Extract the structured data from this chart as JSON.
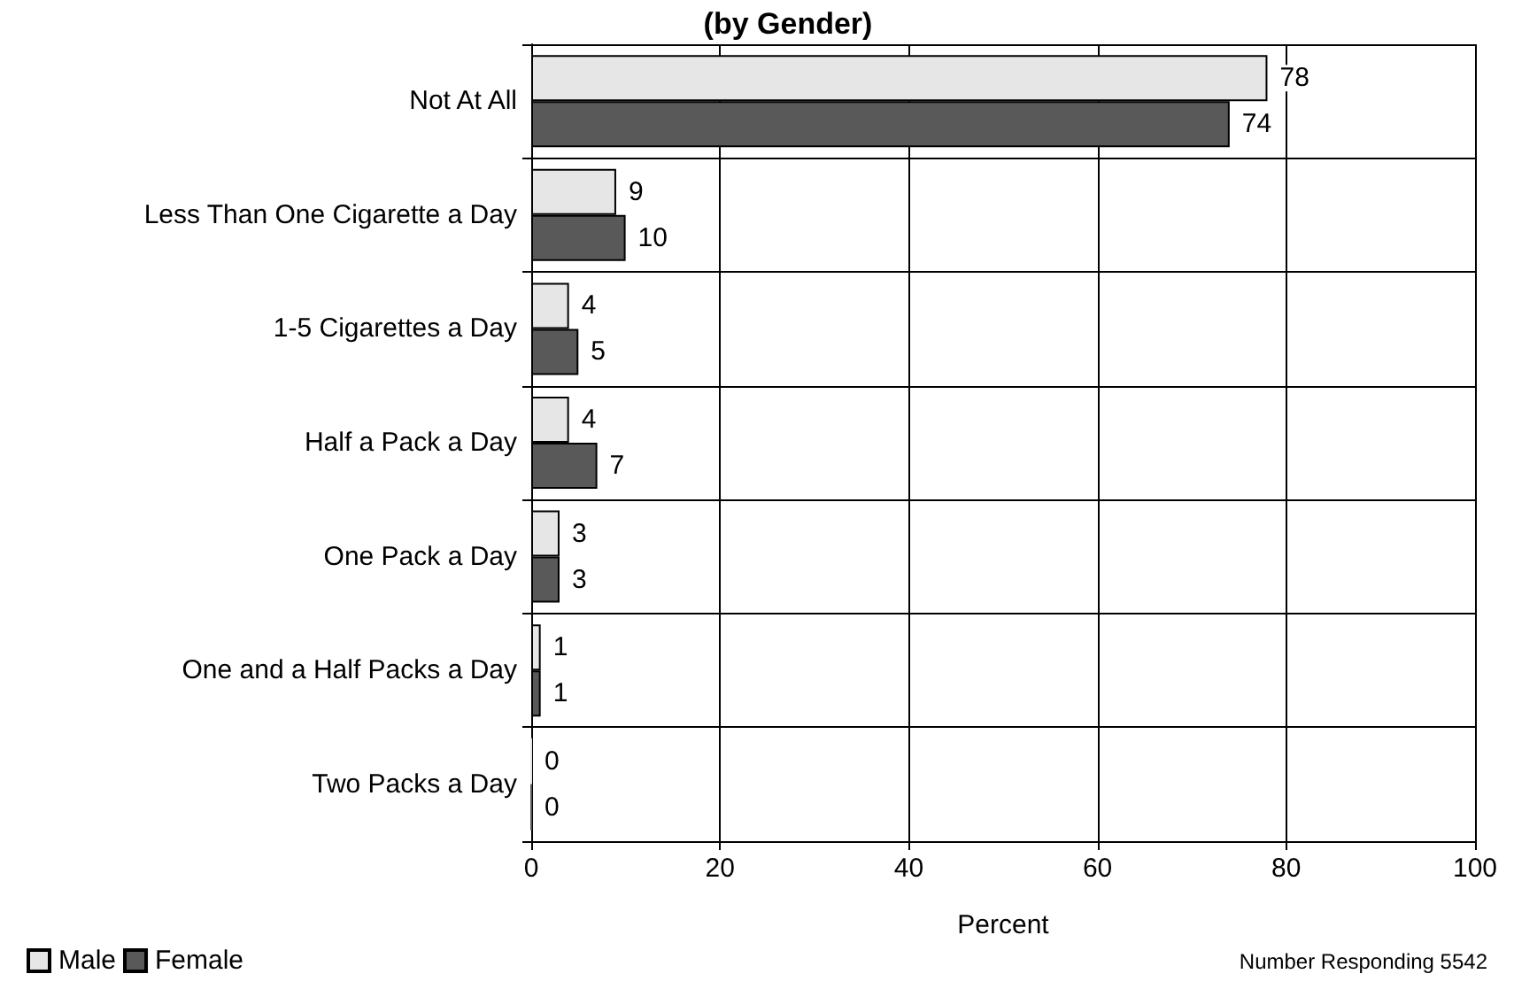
{
  "chart_data": {
    "type": "bar",
    "orientation": "horizontal",
    "title": "(by Gender)",
    "xlabel": "Percent",
    "categories": [
      "Not At All",
      "Less Than One Cigarette a Day",
      "1-5 Cigarettes a Day",
      "Half a Pack a Day",
      "One Pack a Day",
      "One and a Half Packs a Day",
      "Two Packs a Day"
    ],
    "series": [
      {
        "name": "Male",
        "color": "#e6e6e6",
        "values": [
          78,
          9,
          4,
          4,
          3,
          1,
          0
        ]
      },
      {
        "name": "Female",
        "color": "#595959",
        "values": [
          74,
          10,
          5,
          7,
          3,
          1,
          0
        ]
      }
    ],
    "xlim": [
      0,
      100
    ],
    "xticks": [
      0,
      20,
      40,
      60,
      80,
      100
    ],
    "grid": true,
    "legend": "bottom left",
    "data_labels": true,
    "annotations": [
      "Number Responding 5542"
    ]
  }
}
